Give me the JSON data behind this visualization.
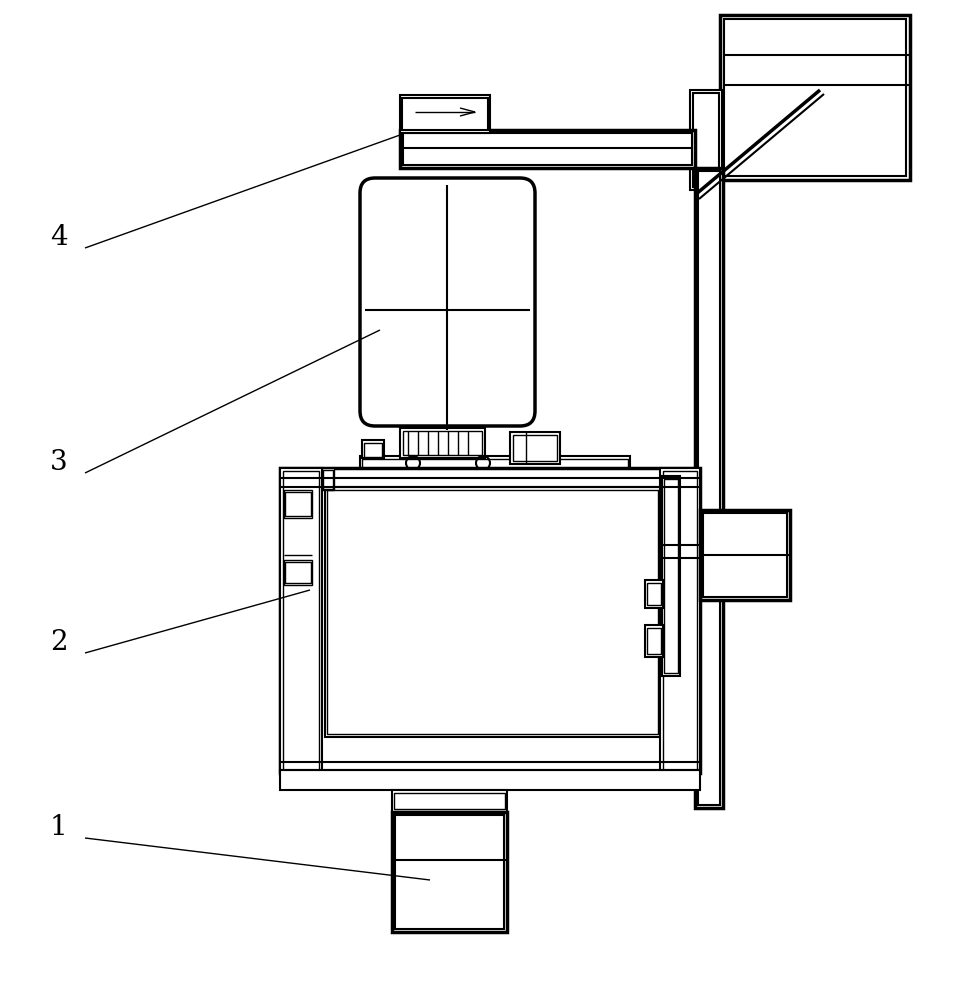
{
  "bg_color": "#ffffff",
  "lc": "#000000",
  "lw": 1.5,
  "tlw": 2.5,
  "slw": 1.0,
  "label_fontsize": 20
}
